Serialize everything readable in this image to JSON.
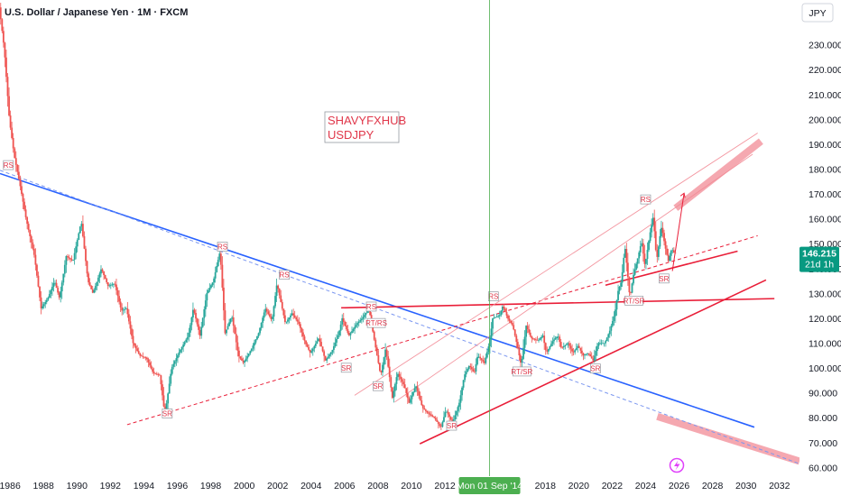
{
  "header": {
    "title": "U.S. Dollar / Japanese Yen · 1M · FXCM"
  },
  "currency_badge": "JPY",
  "annotation": {
    "line1": "SHAVYFXHUB",
    "line2": "USDJPY"
  },
  "price_badge": {
    "value": "146.215",
    "countdown": "21d 1h"
  },
  "crosshair_label": "Mon 01 Sep '14",
  "colors": {
    "up": "#26a69a",
    "down": "#ef5350",
    "blue_trend": "#2962ff",
    "red_trend": "#e91e38",
    "pink": "#f28b96",
    "badge": "#089981",
    "crosshair": "#4caf50",
    "axis_text": "#131722"
  },
  "chart_data": {
    "type": "candlestick",
    "title": "U.S. Dollar / Japanese Yen · 1M · FXCM",
    "x_unit": "year",
    "x_range": [
      1985.4,
      2033.2
    ],
    "y_range": [
      56.5,
      248.0
    ],
    "x_ticks": [
      "1986",
      "1988",
      "1990",
      "1992",
      "1994",
      "1996",
      "1998",
      "2000",
      "2002",
      "2004",
      "2006",
      "2008",
      "2010",
      "2012",
      "2018",
      "2020",
      "2022",
      "2024",
      "2026",
      "2028",
      "2030",
      "2032"
    ],
    "y_ticks": [
      "60.000",
      "70.000",
      "80.000",
      "90.000",
      "100.000",
      "110.000",
      "120.000",
      "130.000",
      "140.000",
      "150.000",
      "160.000",
      "170.000",
      "180.000",
      "190.000",
      "200.000",
      "210.000",
      "220.000",
      "230.000"
    ],
    "last_price": 146.215,
    "crosshair_x": 2014.67,
    "price_path": [
      [
        1985.4,
        245
      ],
      [
        1985.7,
        228
      ],
      [
        1986.0,
        200
      ],
      [
        1986.3,
        185
      ],
      [
        1986.6,
        175
      ],
      [
        1987.0,
        160
      ],
      [
        1987.5,
        145
      ],
      [
        1987.9,
        124
      ],
      [
        1988.3,
        128
      ],
      [
        1988.7,
        135
      ],
      [
        1989.0,
        128
      ],
      [
        1989.4,
        145
      ],
      [
        1989.8,
        143
      ],
      [
        1990.3,
        159
      ],
      [
        1990.7,
        135
      ],
      [
        1991.0,
        130
      ],
      [
        1991.5,
        140
      ],
      [
        1991.9,
        133
      ],
      [
        1992.3,
        134
      ],
      [
        1992.7,
        123
      ],
      [
        1993.0,
        124
      ],
      [
        1993.4,
        110
      ],
      [
        1993.8,
        105
      ],
      [
        1994.2,
        104
      ],
      [
        1994.6,
        98
      ],
      [
        1995.0,
        97
      ],
      [
        1995.3,
        81
      ],
      [
        1995.7,
        100
      ],
      [
        1996.2,
        107
      ],
      [
        1996.7,
        113
      ],
      [
        1997.0,
        124
      ],
      [
        1997.4,
        113
      ],
      [
        1997.8,
        130
      ],
      [
        1998.2,
        135
      ],
      [
        1998.6,
        147
      ],
      [
        1998.9,
        114
      ],
      [
        1999.3,
        121
      ],
      [
        1999.7,
        105
      ],
      [
        2000.0,
        102
      ],
      [
        2000.5,
        108
      ],
      [
        2000.9,
        114
      ],
      [
        2001.3,
        124
      ],
      [
        2001.7,
        119
      ],
      [
        2002.0,
        134
      ],
      [
        2002.5,
        118
      ],
      [
        2002.9,
        122
      ],
      [
        2003.3,
        118
      ],
      [
        2003.7,
        110
      ],
      [
        2004.0,
        106
      ],
      [
        2004.5,
        112
      ],
      [
        2004.9,
        103
      ],
      [
        2005.3,
        107
      ],
      [
        2005.7,
        114
      ],
      [
        2005.9,
        120
      ],
      [
        2006.3,
        113
      ],
      [
        2006.8,
        118
      ],
      [
        2007.1,
        120
      ],
      [
        2007.5,
        124
      ],
      [
        2007.8,
        112
      ],
      [
        2008.2,
        97
      ],
      [
        2008.5,
        108
      ],
      [
        2008.9,
        88
      ],
      [
        2009.2,
        98
      ],
      [
        2009.6,
        93
      ],
      [
        2009.9,
        86
      ],
      [
        2010.3,
        93
      ],
      [
        2010.7,
        84
      ],
      [
        2011.0,
        82
      ],
      [
        2011.4,
        80
      ],
      [
        2011.8,
        76
      ],
      [
        2012.1,
        83
      ],
      [
        2012.5,
        78
      ],
      [
        2012.9,
        86
      ],
      [
        2013.2,
        97
      ],
      [
        2013.5,
        101
      ],
      [
        2013.8,
        98
      ],
      [
        2014.0,
        105
      ],
      [
        2014.4,
        102
      ],
      [
        2014.7,
        110
      ],
      [
        2014.9,
        120
      ],
      [
        2015.3,
        121
      ],
      [
        2015.5,
        125
      ],
      [
        2015.8,
        120
      ],
      [
        2016.1,
        117
      ],
      [
        2016.4,
        108
      ],
      [
        2016.6,
        101
      ],
      [
        2016.9,
        117
      ],
      [
        2017.2,
        112
      ],
      [
        2017.6,
        111
      ],
      [
        2017.9,
        113
      ],
      [
        2018.1,
        106
      ],
      [
        2018.5,
        111
      ],
      [
        2018.8,
        113
      ],
      [
        2019.0,
        108
      ],
      [
        2019.4,
        110
      ],
      [
        2019.7,
        106
      ],
      [
        2020.0,
        109
      ],
      [
        2020.3,
        105
      ],
      [
        2020.6,
        106
      ],
      [
        2020.9,
        103
      ],
      [
        2021.2,
        110
      ],
      [
        2021.6,
        110
      ],
      [
        2021.9,
        115
      ],
      [
        2022.2,
        122
      ],
      [
        2022.4,
        131
      ],
      [
        2022.6,
        135
      ],
      [
        2022.8,
        149
      ],
      [
        2022.95,
        139
      ],
      [
        2023.1,
        128
      ],
      [
        2023.3,
        137
      ],
      [
        2023.6,
        145
      ],
      [
        2023.8,
        151
      ],
      [
        2024.0,
        141
      ],
      [
        2024.3,
        154
      ],
      [
        2024.5,
        161
      ],
      [
        2024.7,
        143
      ],
      [
        2024.9,
        153
      ],
      [
        2025.0,
        157
      ],
      [
        2025.2,
        149
      ],
      [
        2025.4,
        143
      ],
      [
        2025.6,
        148
      ],
      [
        2025.75,
        146.2
      ]
    ],
    "lines": [
      {
        "name": "blue-downtrend",
        "kind": "solid",
        "from": [
          1985.4,
          178.2
        ],
        "to": [
          2030.5,
          76.2
        ]
      },
      {
        "name": "blue-dashed-trend",
        "kind": "dashed",
        "from": [
          1985.4,
          179.5
        ],
        "to": [
          2033.2,
          61.5
        ]
      },
      {
        "name": "red-horizontal-resistance",
        "kind": "solid",
        "from": [
          2005.8,
          124.2
        ],
        "to": [
          2031.7,
          127.9
        ]
      },
      {
        "name": "red-lower-channel",
        "kind": "solid",
        "from": [
          2010.5,
          69.5
        ],
        "to": [
          2031.2,
          135.4
        ]
      },
      {
        "name": "red-upper-short-line",
        "kind": "solid",
        "from": [
          2021.6,
          133.3
        ],
        "to": [
          2029.5,
          147.0
        ]
      },
      {
        "name": "red-dashed-long",
        "kind": "dashed",
        "from": [
          1993.0,
          77.2
        ],
        "to": [
          2030.7,
          153.2
        ]
      },
      {
        "name": "pink-channel-upper",
        "kind": "thin",
        "from": [
          2009.0,
          86.3
        ],
        "to": [
          2030.4,
          186.0
        ]
      },
      {
        "name": "pink-channel-lower",
        "kind": "thin",
        "from": [
          2006.6,
          89.0
        ],
        "to": [
          2030.7,
          194.5
        ]
      },
      {
        "name": "projection-up",
        "kind": "arrow",
        "from": [
          2025.6,
          139.0
        ],
        "to": [
          2026.3,
          170.3
        ]
      }
    ],
    "bands": [
      {
        "name": "upper-target-band",
        "from": [
          2025.8,
          164.3
        ],
        "to": [
          2030.9,
          191.2
        ]
      },
      {
        "name": "lower-target-band",
        "from": [
          2024.7,
          80.5
        ],
        "to": [
          2033.2,
          62.5
        ]
      }
    ],
    "markers": [
      {
        "label": "RS",
        "x": 1985.9,
        "y": 181.6
      },
      {
        "label": "RS",
        "x": 1998.7,
        "y": 148.8
      },
      {
        "label": "RS",
        "x": 2002.4,
        "y": 137.5
      },
      {
        "label": "RS",
        "x": 2007.6,
        "y": 124.7
      },
      {
        "label": "RT/RS",
        "x": 2007.9,
        "y": 118.1
      },
      {
        "label": "SR",
        "x": 1995.4,
        "y": 81.7
      },
      {
        "label": "SR",
        "x": 2006.1,
        "y": 100.1
      },
      {
        "label": "SR",
        "x": 2008.0,
        "y": 92.7
      },
      {
        "label": "SR",
        "x": 2012.4,
        "y": 76.8
      },
      {
        "label": "RS",
        "x": 2014.9,
        "y": 128.8
      },
      {
        "label": "RT/SR",
        "x": 2016.6,
        "y": 98.6
      },
      {
        "label": "SR",
        "x": 2021.0,
        "y": 99.8
      },
      {
        "label": "RT/SR",
        "x": 2023.3,
        "y": 127.1
      },
      {
        "label": "RS",
        "x": 2024.0,
        "y": 167.8
      },
      {
        "label": "SR",
        "x": 2025.1,
        "y": 136.0
      }
    ]
  }
}
